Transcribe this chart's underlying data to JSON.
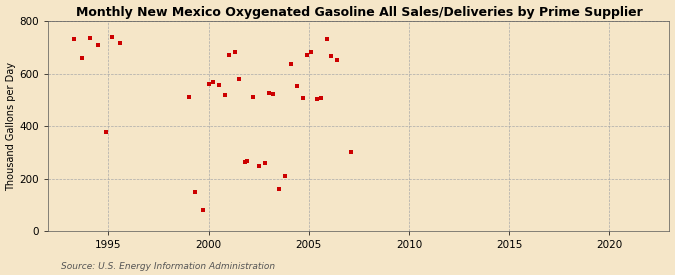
{
  "title": "Monthly New Mexico Oxygenated Gasoline All Sales/Deliveries by Prime Supplier",
  "ylabel": "Thousand Gallons per Day",
  "source": "Source: U.S. Energy Information Administration",
  "background_color": "#f5e6c8",
  "marker_color": "#cc0000",
  "xlim": [
    1992,
    2023
  ],
  "ylim": [
    0,
    800
  ],
  "yticks": [
    0,
    200,
    400,
    600,
    800
  ],
  "xticks": [
    1995,
    2000,
    2005,
    2010,
    2015,
    2020
  ],
  "x": [
    1993.3,
    1993.7,
    1994.1,
    1994.5,
    1994.9,
    1995.2,
    1995.6,
    1999.0,
    1999.3,
    1999.7,
    2000.0,
    2000.2,
    2000.5,
    2000.8,
    2001.0,
    2001.3,
    2001.5,
    2001.8,
    2001.9,
    2002.2,
    2002.5,
    2002.8,
    2003.0,
    2003.2,
    2003.5,
    2003.8,
    2004.1,
    2004.4,
    2004.7,
    2004.9,
    2005.1,
    2005.4,
    2005.6,
    2005.9,
    2006.1,
    2006.4,
    2007.1
  ],
  "y": [
    730,
    660,
    736,
    710,
    378,
    740,
    718,
    510,
    148,
    80,
    562,
    568,
    558,
    520,
    672,
    682,
    578,
    262,
    268,
    512,
    250,
    258,
    527,
    522,
    160,
    212,
    635,
    553,
    508,
    672,
    682,
    502,
    507,
    732,
    668,
    652,
    300
  ]
}
